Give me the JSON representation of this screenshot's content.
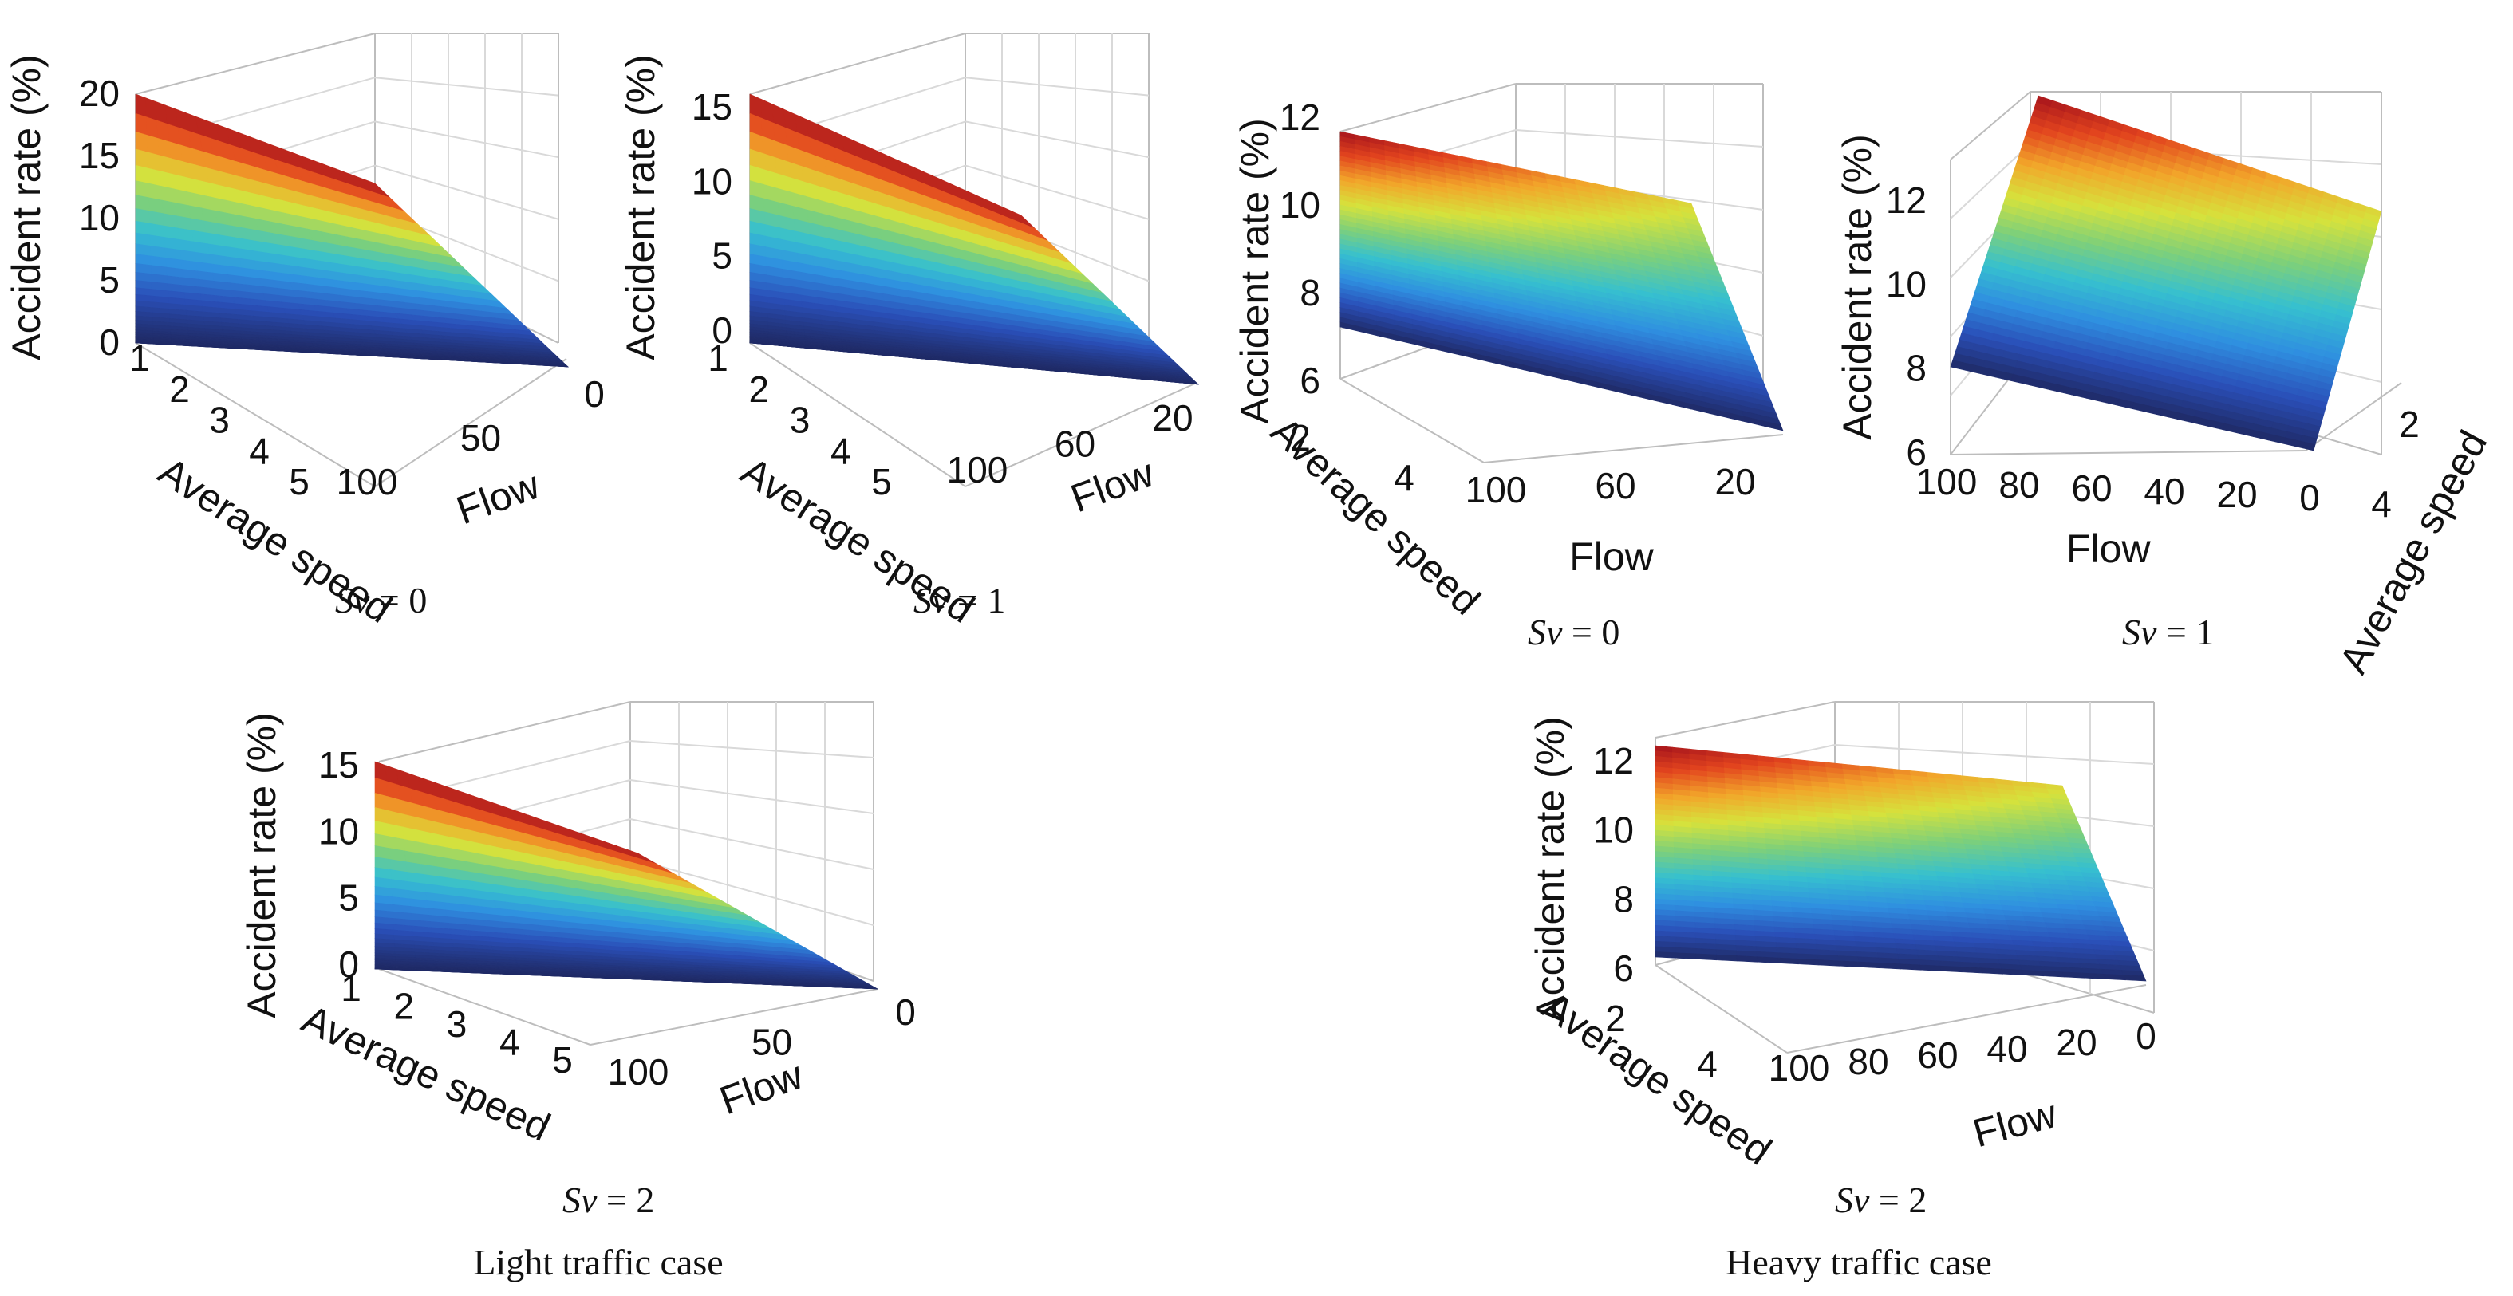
{
  "figure": {
    "captions": {
      "light": "Light traffic case",
      "heavy": "Heavy traffic case"
    },
    "sv_prefix": "Sv",
    "sv_suffixes": [
      "= 0",
      "= 1",
      "= 2"
    ],
    "colors": {
      "colormap": [
        "#1f2a66",
        "#2a4fb8",
        "#2f8fe0",
        "#36c0cf",
        "#7ed07a",
        "#d6e23c",
        "#f2a52a",
        "#e2441e",
        "#a4121c"
      ],
      "grid": "#d9d9d9",
      "text": "#111111"
    }
  },
  "chart_data": [
    {
      "type": "surface",
      "group": "Light traffic case",
      "caption": "Sv = 0",
      "zlabel": "Accident rate (%)",
      "xlabel": "Average speed",
      "ylabel": "Flow",
      "z_ticks": [
        "0",
        "5",
        "10",
        "15",
        "20"
      ],
      "x_ticks": [
        "1",
        "2",
        "3",
        "4",
        "5"
      ],
      "y_ticks": [
        "100",
        "50",
        "0"
      ],
      "zlim": [
        0,
        20
      ],
      "xlim": [
        1,
        5
      ],
      "ylim": [
        0,
        100
      ],
      "max_value": 20,
      "min_value": 0,
      "shape": "steep decay with speed"
    },
    {
      "type": "surface",
      "group": "Light traffic case",
      "caption": "Sv = 1",
      "zlabel": "Accident rate (%)",
      "xlabel": "Average speed",
      "ylabel": "Flow",
      "z_ticks": [
        "0",
        "5",
        "10",
        "15"
      ],
      "x_ticks": [
        "1",
        "2",
        "3",
        "4",
        "5"
      ],
      "y_ticks": [
        "100",
        "60",
        "20"
      ],
      "zlim": [
        0,
        17
      ],
      "xlim": [
        1,
        5
      ],
      "ylim": [
        0,
        100
      ],
      "max_value": 17,
      "min_value": 0,
      "shape": "steep decay with speed"
    },
    {
      "type": "surface",
      "group": "Light traffic case",
      "caption": "Sv = 2",
      "zlabel": "Accident rate (%)",
      "xlabel": "Average speed",
      "ylabel": "Flow",
      "z_ticks": [
        "0",
        "5",
        "10",
        "15"
      ],
      "x_ticks": [
        "1",
        "2",
        "3",
        "4",
        "5"
      ],
      "y_ticks": [
        "100",
        "50",
        "0"
      ],
      "zlim": [
        0,
        15
      ],
      "xlim": [
        1,
        5
      ],
      "ylim": [
        0,
        100
      ],
      "max_value": 14.5,
      "min_value": 0,
      "shape": "steep decay with speed"
    },
    {
      "type": "surface",
      "group": "Heavy traffic case",
      "caption": "Sv = 0",
      "zlabel": "Accident rate (%)",
      "xlabel": "Average speed",
      "ylabel": "Flow",
      "z_ticks": [
        "6",
        "8",
        "10",
        "12"
      ],
      "x_ticks": [
        "2",
        "4"
      ],
      "y_ticks": [
        "100",
        "60",
        "20"
      ],
      "zlim": [
        6,
        12
      ],
      "xlim": [
        0,
        5
      ],
      "ylim": [
        0,
        100
      ],
      "max_value": 11.7,
      "min_value": 6,
      "shape": "gradual decline"
    },
    {
      "type": "surface",
      "group": "Heavy traffic case",
      "caption": "Sv = 1",
      "zlabel": "Accident rate (%)",
      "xlabel": "Flow",
      "ylabel": "Average speed",
      "z_ticks": [
        "6",
        "8",
        "10",
        "12"
      ],
      "x_ticks": [
        "100",
        "80",
        "60",
        "40",
        "20",
        "0"
      ],
      "y_ticks": [
        "2",
        "4"
      ],
      "zlim": [
        6,
        13
      ],
      "xlim": [
        0,
        100
      ],
      "ylim": [
        0,
        5
      ],
      "max_value": 13,
      "min_value": 6,
      "shape": "gradual decline"
    },
    {
      "type": "surface",
      "group": "Heavy traffic case",
      "caption": "Sv = 2",
      "zlabel": "Accident rate (%)",
      "xlabel": "Average speed",
      "ylabel": "Flow",
      "z_ticks": [
        "6",
        "8",
        "10",
        "12"
      ],
      "x_ticks": [
        "2",
        "4"
      ],
      "y_ticks": [
        "100",
        "80",
        "60",
        "40",
        "20",
        "0"
      ],
      "zlim": [
        6,
        12.5
      ],
      "xlim": [
        0,
        5
      ],
      "ylim": [
        0,
        100
      ],
      "max_value": 12.5,
      "min_value": 6,
      "shape": "gradual decline"
    }
  ]
}
